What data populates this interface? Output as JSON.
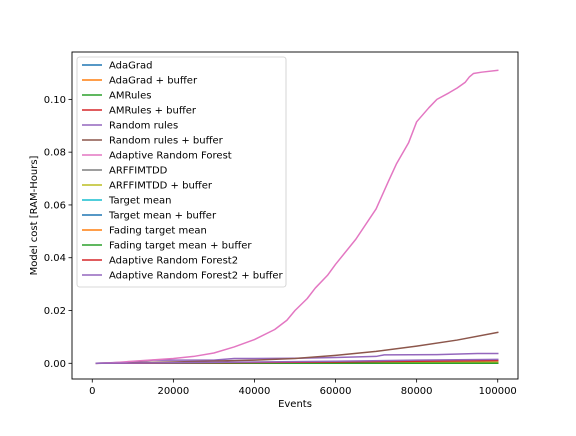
{
  "chart_data": {
    "type": "line",
    "title": "",
    "xlabel": "Events",
    "ylabel": "Model cost [RAM-Hours]",
    "xlim": [
      -5000,
      105000
    ],
    "ylim": [
      -0.00595,
      0.11795
    ],
    "xticks": [
      0,
      20000,
      40000,
      60000,
      80000,
      100000
    ],
    "xtick_labels": [
      "0",
      "20000",
      "40000",
      "60000",
      "80000",
      "100000"
    ],
    "yticks": [
      0.0,
      0.02,
      0.04,
      0.06,
      0.08,
      0.1
    ],
    "ytick_labels": [
      "0.00",
      "0.02",
      "0.04",
      "0.06",
      "0.08",
      "0.10"
    ],
    "grid": false,
    "legend_position": "top-left",
    "series": [
      {
        "name": "AdaGrad",
        "color": "#1f77b4",
        "x": [
          1000,
          100000
        ],
        "y": [
          0.0,
          0.0
        ]
      },
      {
        "name": "AdaGrad + buffer",
        "color": "#ff7f0e",
        "x": [
          1000,
          100000
        ],
        "y": [
          0.0,
          0.0001
        ]
      },
      {
        "name": "AMRules",
        "color": "#2ca02c",
        "x": [
          1000,
          100000
        ],
        "y": [
          0.0,
          0.0
        ]
      },
      {
        "name": "AMRules + buffer",
        "color": "#d62728",
        "x": [
          1000,
          100000
        ],
        "y": [
          0.0,
          0.0002
        ]
      },
      {
        "name": "Random rules",
        "color": "#9467bd",
        "x": [
          1000,
          10000,
          15000,
          30000,
          35000,
          50000,
          60000,
          70000,
          72000,
          85000,
          95000,
          100000
        ],
        "y": [
          0.0,
          0.0005,
          0.0012,
          0.0012,
          0.0018,
          0.0019,
          0.0022,
          0.0026,
          0.0032,
          0.0033,
          0.0037,
          0.0037
        ]
      },
      {
        "name": "Random rules + buffer",
        "color": "#8c564b",
        "x": [
          1000,
          20000,
          40000,
          50000,
          60000,
          70000,
          80000,
          90000,
          100000
        ],
        "y": [
          0.0,
          0.0005,
          0.0012,
          0.0018,
          0.003,
          0.0045,
          0.0065,
          0.0088,
          0.0117
        ]
      },
      {
        "name": "Adaptive Random Forest",
        "color": "#e377c2",
        "x": [
          1000,
          5000,
          10000,
          15000,
          20000,
          25000,
          30000,
          35000,
          40000,
          45000,
          48000,
          50000,
          53000,
          55000,
          58000,
          60000,
          65000,
          70000,
          73000,
          75000,
          78000,
          80000,
          83000,
          85000,
          88000,
          90000,
          92000,
          93000,
          94000,
          96000,
          100000
        ],
        "y": [
          0.0,
          0.0002,
          0.0008,
          0.0013,
          0.0018,
          0.0026,
          0.0039,
          0.0062,
          0.009,
          0.0128,
          0.0163,
          0.02,
          0.0245,
          0.0285,
          0.0333,
          0.0375,
          0.047,
          0.0585,
          0.0688,
          0.0755,
          0.0835,
          0.0915,
          0.0968,
          0.1,
          0.1025,
          0.1043,
          0.1065,
          0.1085,
          0.1098,
          0.1103,
          0.111
        ]
      },
      {
        "name": "ARFFIMTDD",
        "color": "#7f7f7f",
        "x": [
          1000,
          100000
        ],
        "y": [
          0.0,
          0.0003
        ]
      },
      {
        "name": "ARFFIMTDD + buffer",
        "color": "#bcbd22",
        "x": [
          1000,
          100000
        ],
        "y": [
          0.0,
          0.0004
        ]
      },
      {
        "name": "Target mean",
        "color": "#17becf",
        "x": [
          1000,
          100000
        ],
        "y": [
          0.0,
          0.0
        ]
      },
      {
        "name": "Target mean + buffer",
        "color": "#1f77b4",
        "x": [
          1000,
          100000
        ],
        "y": [
          0.0,
          0.0
        ]
      },
      {
        "name": "Fading target mean",
        "color": "#ff7f0e",
        "x": [
          1000,
          100000
        ],
        "y": [
          0.0,
          0.0
        ]
      },
      {
        "name": "Fading target mean + buffer",
        "color": "#2ca02c",
        "x": [
          1000,
          100000
        ],
        "y": [
          0.0,
          0.0
        ]
      },
      {
        "name": "Adaptive Random Forest2",
        "color": "#d62728",
        "x": [
          1000,
          20000,
          40000,
          60000,
          80000,
          100000
        ],
        "y": [
          0.0,
          0.0001,
          0.0003,
          0.0005,
          0.0008,
          0.001
        ]
      },
      {
        "name": "Adaptive Random Forest2 + buffer",
        "color": "#9467bd",
        "x": [
          1000,
          20000,
          40000,
          60000,
          80000,
          100000
        ],
        "y": [
          0.0,
          0.0002,
          0.0005,
          0.0008,
          0.0012,
          0.0015
        ]
      }
    ]
  }
}
